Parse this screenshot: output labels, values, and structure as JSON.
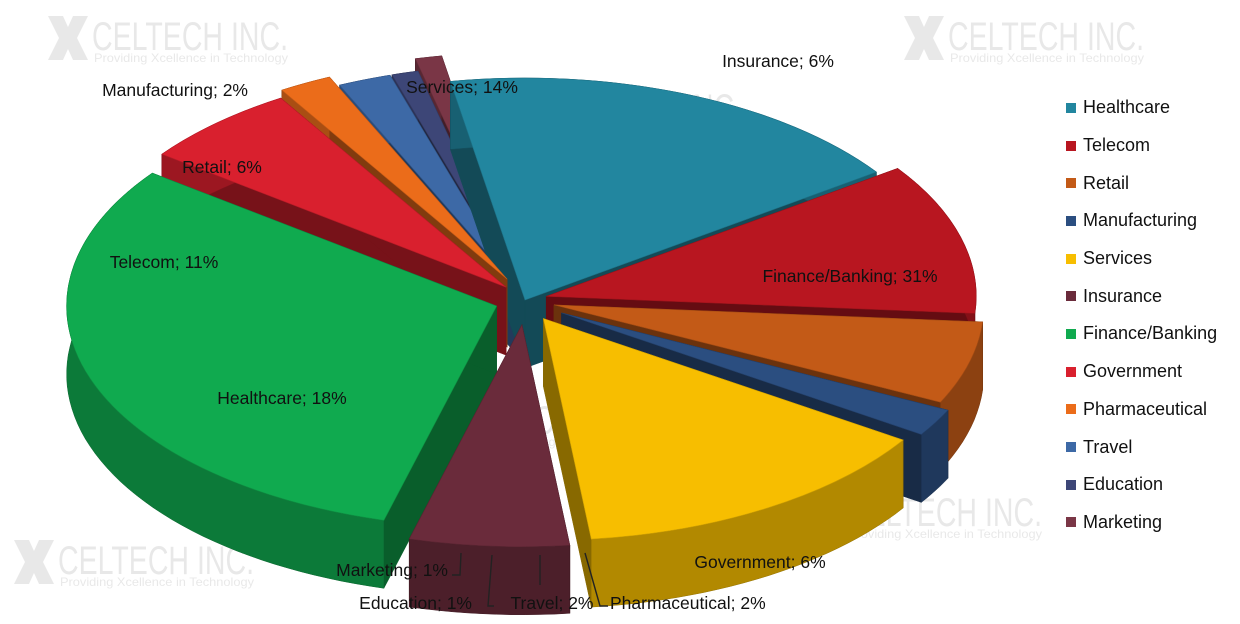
{
  "watermark": {
    "name": "CELTECH INC.",
    "tagline": "Providing Xcellence in Technology"
  },
  "chart_data": {
    "type": "pie",
    "variant": "3d-exploded",
    "legend_position": "right",
    "categories": [
      "Healthcare",
      "Telecom",
      "Retail",
      "Manufacturing",
      "Services",
      "Insurance",
      "Finance/Banking",
      "Government",
      "Pharmaceutical",
      "Travel",
      "Education",
      "Marketing"
    ],
    "values": [
      18,
      11,
      6,
      2,
      14,
      6,
      31,
      6,
      2,
      2,
      1,
      1
    ],
    "data_labels": [
      "Healthcare; 18%",
      "Telecom; 11%",
      "Retail; 6%",
      "Manufacturing; 2%",
      "Services; 14%",
      "Insurance; 6%",
      "Finance/Banking; 31%",
      "Government; 6%",
      "Pharmaceutical; 2%",
      "Travel; 2%",
      "Education; 1%",
      "Marketing; 1%"
    ],
    "colors": [
      "#22869F",
      "#B81620",
      "#C35A17",
      "#2B4E80",
      "#F7BE00",
      "#6A2B3B",
      "#10AA4F",
      "#D9202E",
      "#EB6C1A",
      "#3D69A6",
      "#3D4677",
      "#7A3646"
    ]
  }
}
